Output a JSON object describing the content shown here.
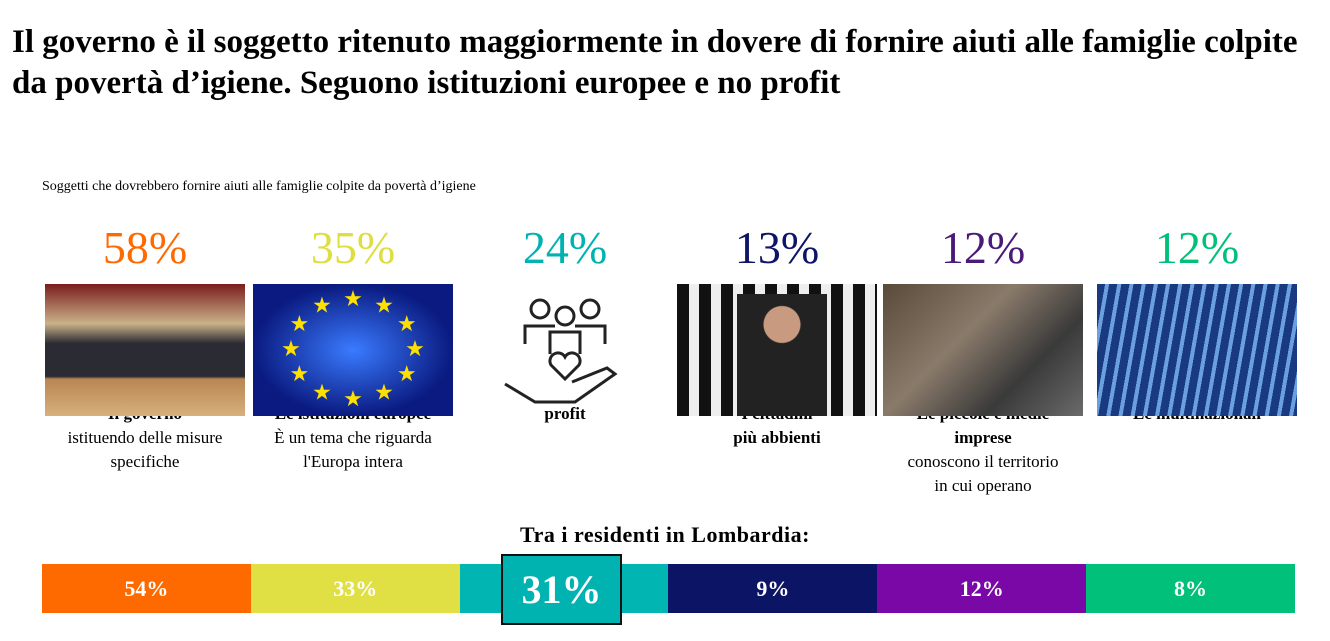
{
  "title": "Il governo è il soggetto ritenuto maggiormente in dovere di fornire aiuti alle famiglie colpite da povertà d’igiene. Seguono istituzioni europee e no profit",
  "subtitle": "Soggetti che dovrebbero fornire aiuti alle famiglie colpite da povertà d’igiene",
  "items": [
    {
      "pct": "58%",
      "color": "#ff6a00",
      "label": "Il governo",
      "detail": [
        "istituendo delle misure",
        "specifiche"
      ],
      "icon": "government-photo"
    },
    {
      "pct": "35%",
      "color": "#dede40",
      "label": "Le istituzioni europee",
      "detail": [
        "È un tema che riguarda",
        "l'Europa intera"
      ],
      "icon": "eu-flag-photo"
    },
    {
      "pct": "24%",
      "color": "#00b3b0",
      "label": "profit",
      "detail": [],
      "icon": "family-hand-icon"
    },
    {
      "pct": "13%",
      "color": "#0e1466",
      "label": "I cittadini",
      "label2": "più abbienti",
      "detail": [],
      "icon": "wealthy-person-photo"
    },
    {
      "pct": "12%",
      "color": "#4a1a78",
      "label": "Le piccole e medie",
      "label2": "imprese",
      "detail": [
        "conoscono il territorio",
        "in cui operano"
      ],
      "icon": "workshop-photo"
    },
    {
      "pct": "12%",
      "color": "#00c07a",
      "label": "Le multinazionali",
      "detail": [],
      "icon": "skyscrapers-photo"
    }
  ],
  "lombardia": {
    "title": "Tra i residenti in Lombardia:",
    "values": [
      "54%",
      "33%",
      "",
      "9%",
      "12%",
      "8%"
    ],
    "highlight": "31%",
    "colors": [
      "#ff6a00",
      "#e0e044",
      "#00b5b2",
      "#0c1466",
      "#7a08a6",
      "#00c07a"
    ]
  }
}
